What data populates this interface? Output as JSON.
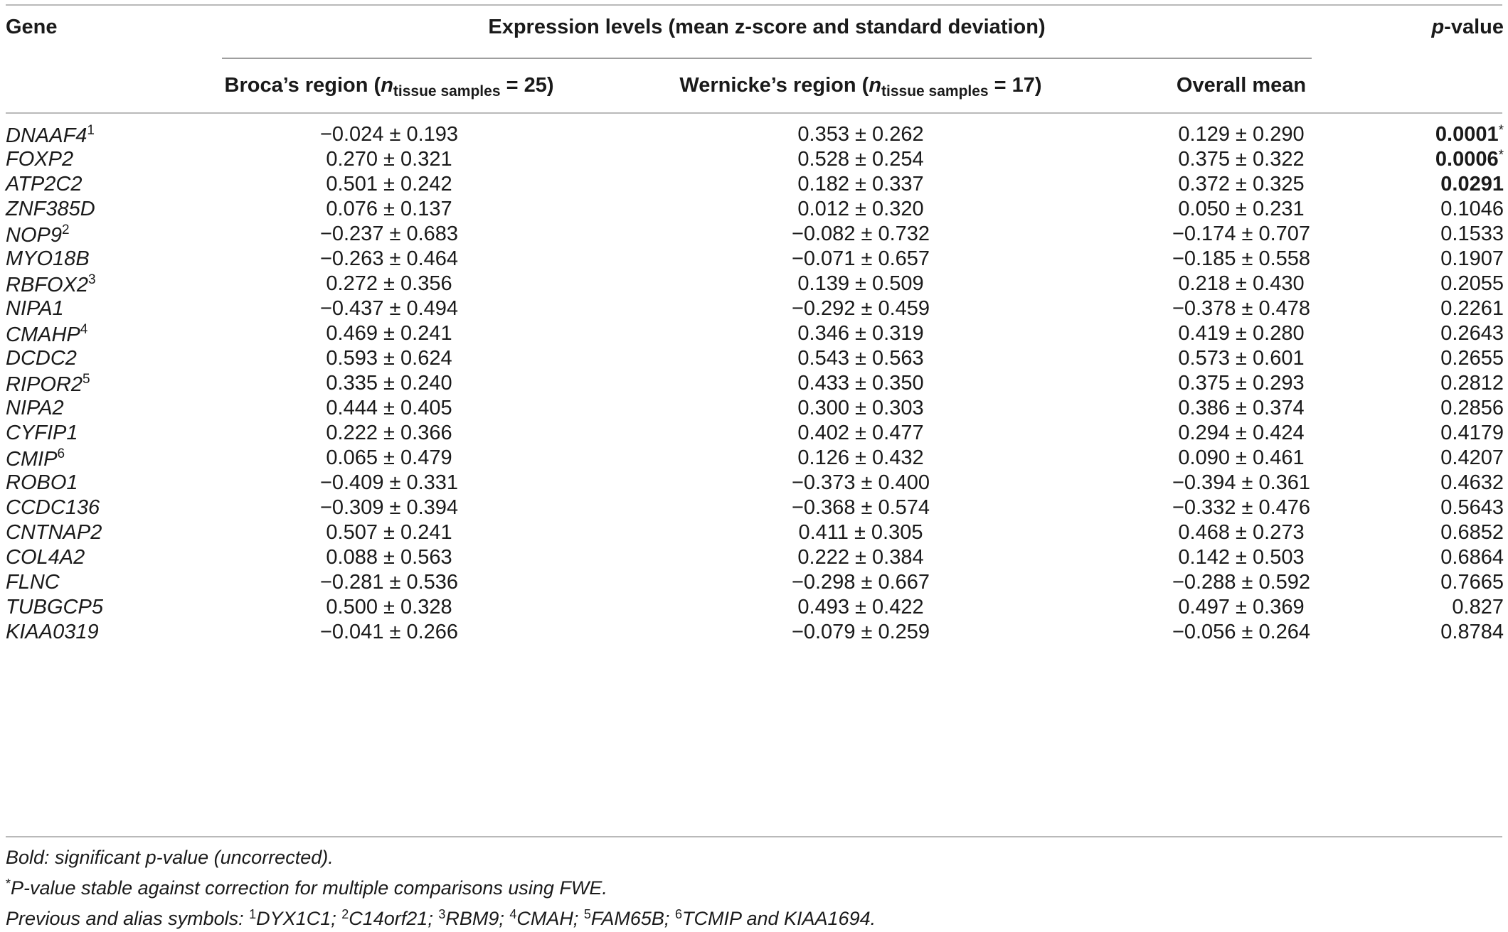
{
  "header": {
    "gene": "Gene",
    "expression": "Expression levels (mean z-score and standard deviation)",
    "pvalue_italic": "p",
    "pvalue_rest": "-value",
    "broca_label": "Broca’s region (",
    "wernicke_label": "Wernicke’s region (",
    "n_symbol": "n",
    "n_subscript": "tissue samples",
    "broca_count": " = 25)",
    "wernicke_count": " = 17)",
    "overall_mean": "Overall mean"
  },
  "rows": [
    {
      "gene": "DNAAF4",
      "sup": "1",
      "broca": "−0.024 ± 0.193",
      "wernicke": "0.353 ± 0.262",
      "overall": "0.129 ± 0.290",
      "p": "0.0001",
      "p_mark": "*",
      "bold": true
    },
    {
      "gene": "FOXP2",
      "sup": "",
      "broca": "0.270 ± 0.321",
      "wernicke": "0.528 ± 0.254",
      "overall": "0.375 ± 0.322",
      "p": "0.0006",
      "p_mark": "*",
      "bold": true
    },
    {
      "gene": "ATP2C2",
      "sup": "",
      "broca": "0.501 ± 0.242",
      "wernicke": "0.182 ± 0.337",
      "overall": "0.372 ± 0.325",
      "p": "0.0291",
      "p_mark": "",
      "bold": true
    },
    {
      "gene": "ZNF385D",
      "sup": "",
      "broca": "0.076 ± 0.137",
      "wernicke": "0.012 ± 0.320",
      "overall": "0.050 ± 0.231",
      "p": "0.1046",
      "p_mark": "",
      "bold": false
    },
    {
      "gene": "NOP9",
      "sup": "2",
      "broca": "−0.237 ± 0.683",
      "wernicke": "−0.082 ± 0.732",
      "overall": "−0.174 ± 0.707",
      "p": "0.1533",
      "p_mark": "",
      "bold": false
    },
    {
      "gene": "MYO18B",
      "sup": "",
      "broca": "−0.263 ± 0.464",
      "wernicke": "−0.071 ± 0.657",
      "overall": "−0.185 ± 0.558",
      "p": "0.1907",
      "p_mark": "",
      "bold": false
    },
    {
      "gene": "RBFOX2",
      "sup": "3",
      "broca": "0.272 ± 0.356",
      "wernicke": "0.139 ± 0.509",
      "overall": "0.218 ± 0.430",
      "p": "0.2055",
      "p_mark": "",
      "bold": false
    },
    {
      "gene": "NIPA1",
      "sup": "",
      "broca": "−0.437 ± 0.494",
      "wernicke": "−0.292 ± 0.459",
      "overall": "−0.378 ± 0.478",
      "p": "0.2261",
      "p_mark": "",
      "bold": false
    },
    {
      "gene": "CMAHP",
      "sup": "4",
      "broca": "0.469 ± 0.241",
      "wernicke": "0.346 ± 0.319",
      "overall": "0.419 ± 0.280",
      "p": "0.2643",
      "p_mark": "",
      "bold": false
    },
    {
      "gene": "DCDC2",
      "sup": "",
      "broca": "0.593 ± 0.624",
      "wernicke": "0.543 ± 0.563",
      "overall": "0.573 ± 0.601",
      "p": "0.2655",
      "p_mark": "",
      "bold": false
    },
    {
      "gene": "RIPOR2",
      "sup": "5",
      "broca": "0.335 ± 0.240",
      "wernicke": "0.433 ± 0.350",
      "overall": "0.375 ± 0.293",
      "p": "0.2812",
      "p_mark": "",
      "bold": false
    },
    {
      "gene": "NIPA2",
      "sup": "",
      "broca": "0.444 ± 0.405",
      "wernicke": "0.300 ± 0.303",
      "overall": "0.386 ± 0.374",
      "p": "0.2856",
      "p_mark": "",
      "bold": false
    },
    {
      "gene": "CYFIP1",
      "sup": "",
      "broca": "0.222 ± 0.366",
      "wernicke": "0.402 ± 0.477",
      "overall": "0.294 ± 0.424",
      "p": "0.4179",
      "p_mark": "",
      "bold": false
    },
    {
      "gene": "CMIP",
      "sup": "6",
      "broca": "0.065 ± 0.479",
      "wernicke": "0.126 ± 0.432",
      "overall": "0.090 ± 0.461",
      "p": "0.4207",
      "p_mark": "",
      "bold": false
    },
    {
      "gene": "ROBO1",
      "sup": "",
      "broca": "−0.409 ± 0.331",
      "wernicke": "−0.373 ± 0.400",
      "overall": "−0.394 ± 0.361",
      "p": "0.4632",
      "p_mark": "",
      "bold": false
    },
    {
      "gene": "CCDC136",
      "sup": "",
      "broca": "−0.309 ± 0.394",
      "wernicke": "−0.368 ± 0.574",
      "overall": "−0.332 ± 0.476",
      "p": "0.5643",
      "p_mark": "",
      "bold": false
    },
    {
      "gene": "CNTNAP2",
      "sup": "",
      "broca": "0.507 ± 0.241",
      "wernicke": "0.411 ± 0.305",
      "overall": "0.468 ± 0.273",
      "p": "0.6852",
      "p_mark": "",
      "bold": false
    },
    {
      "gene": "COL4A2",
      "sup": "",
      "broca": "0.088 ± 0.563",
      "wernicke": "0.222 ± 0.384",
      "overall": "0.142 ± 0.503",
      "p": "0.6864",
      "p_mark": "",
      "bold": false
    },
    {
      "gene": "FLNC",
      "sup": "",
      "broca": "−0.281 ± 0.536",
      "wernicke": "−0.298 ± 0.667",
      "overall": "−0.288 ± 0.592",
      "p": "0.7665",
      "p_mark": "",
      "bold": false
    },
    {
      "gene": "TUBGCP5",
      "sup": "",
      "broca": "0.500 ± 0.328",
      "wernicke": "0.493 ± 0.422",
      "overall": "0.497 ± 0.369",
      "p": "0.827",
      "p_mark": "",
      "bold": false
    },
    {
      "gene": "KIAA0319",
      "sup": "",
      "broca": "−0.041 ± 0.266",
      "wernicke": "−0.079 ± 0.259",
      "overall": "−0.056 ± 0.264",
      "p": "0.8784",
      "p_mark": "",
      "bold": false
    }
  ],
  "notes": {
    "bold_note": "Bold: significant p-value (uncorrected).",
    "star_mark": "*",
    "star_note": "P-value stable against correction for multiple comparisons using FWE.",
    "alias_prefix": "Previous and alias symbols: ",
    "aliases": [
      {
        "num": "1",
        "text": "DYX1C1; "
      },
      {
        "num": "2",
        "text": "C14orf21; "
      },
      {
        "num": "3",
        "text": "RBM9; "
      },
      {
        "num": "4",
        "text": "CMAH; "
      },
      {
        "num": "5",
        "text": "FAM65B; "
      },
      {
        "num": "6",
        "text": "TCMIP and KIAA1694."
      }
    ]
  }
}
